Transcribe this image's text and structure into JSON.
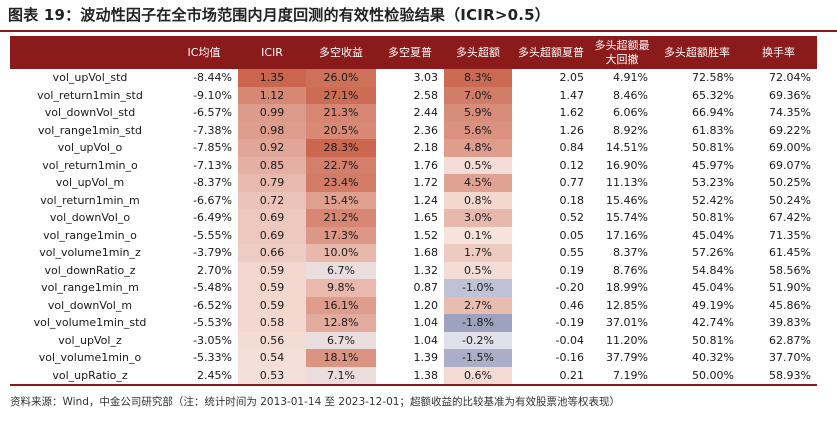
{
  "title": "图表 19：波动性因子在全市场范围内月度回测的有效性检验结果（ICIR>0.5）",
  "footnote": "资料来源：Wind，中金公司研究部（注：统计时间为 2013-01-14 至 2023-12-01；超额收益的比较基准为有效股票池等权表现）",
  "colors": {
    "header_bg": "#8b1a1a",
    "header_text": "#ffffff",
    "heat_positive": "#c0523a",
    "heat_negative": "#7f83a3"
  },
  "columns": [
    "",
    "IC均值",
    "ICIR",
    "多空收益",
    "多空夏普",
    "多头超额",
    "多头超额夏普",
    "多头超额最大回撤",
    "多头超额胜率",
    "换手率"
  ],
  "rows": [
    {
      "name": "vol_upVol_std",
      "ic_mean": "-8.44%",
      "icir": "1.35",
      "ls_return": "26.0%",
      "ls_sharpe": "3.03",
      "long_excess": "8.3%",
      "long_excess_sharpe": "2.05",
      "max_drawdown": "4.91%",
      "win_rate": "72.58%",
      "turnover": "72.04%"
    },
    {
      "name": "vol_return1min_std",
      "ic_mean": "-9.10%",
      "icir": "1.12",
      "ls_return": "27.1%",
      "ls_sharpe": "2.58",
      "long_excess": "7.0%",
      "long_excess_sharpe": "1.47",
      "max_drawdown": "8.46%",
      "win_rate": "65.32%",
      "turnover": "69.36%"
    },
    {
      "name": "vol_downVol_std",
      "ic_mean": "-6.57%",
      "icir": "0.99",
      "ls_return": "21.3%",
      "ls_sharpe": "2.44",
      "long_excess": "5.9%",
      "long_excess_sharpe": "1.62",
      "max_drawdown": "6.06%",
      "win_rate": "66.94%",
      "turnover": "74.35%"
    },
    {
      "name": "vol_range1min_std",
      "ic_mean": "-7.38%",
      "icir": "0.98",
      "ls_return": "20.5%",
      "ls_sharpe": "2.36",
      "long_excess": "5.6%",
      "long_excess_sharpe": "1.26",
      "max_drawdown": "8.92%",
      "win_rate": "61.83%",
      "turnover": "69.22%"
    },
    {
      "name": "vol_upVol_o",
      "ic_mean": "-7.85%",
      "icir": "0.92",
      "ls_return": "28.3%",
      "ls_sharpe": "2.18",
      "long_excess": "4.8%",
      "long_excess_sharpe": "0.84",
      "max_drawdown": "14.51%",
      "win_rate": "50.81%",
      "turnover": "69.00%"
    },
    {
      "name": "vol_return1min_o",
      "ic_mean": "-7.13%",
      "icir": "0.85",
      "ls_return": "22.7%",
      "ls_sharpe": "1.76",
      "long_excess": "0.5%",
      "long_excess_sharpe": "0.12",
      "max_drawdown": "16.90%",
      "win_rate": "45.97%",
      "turnover": "69.07%"
    },
    {
      "name": "vol_upVol_m",
      "ic_mean": "-8.37%",
      "icir": "0.79",
      "ls_return": "23.4%",
      "ls_sharpe": "1.72",
      "long_excess": "4.5%",
      "long_excess_sharpe": "0.77",
      "max_drawdown": "11.13%",
      "win_rate": "53.23%",
      "turnover": "50.25%"
    },
    {
      "name": "vol_return1min_m",
      "ic_mean": "-6.67%",
      "icir": "0.72",
      "ls_return": "15.4%",
      "ls_sharpe": "1.24",
      "long_excess": "0.8%",
      "long_excess_sharpe": "0.18",
      "max_drawdown": "15.46%",
      "win_rate": "52.42%",
      "turnover": "50.24%"
    },
    {
      "name": "vol_downVol_o",
      "ic_mean": "-6.49%",
      "icir": "0.69",
      "ls_return": "21.2%",
      "ls_sharpe": "1.65",
      "long_excess": "3.0%",
      "long_excess_sharpe": "0.52",
      "max_drawdown": "15.74%",
      "win_rate": "50.81%",
      "turnover": "67.42%"
    },
    {
      "name": "vol_range1min_o",
      "ic_mean": "-5.55%",
      "icir": "0.69",
      "ls_return": "17.3%",
      "ls_sharpe": "1.52",
      "long_excess": "0.1%",
      "long_excess_sharpe": "0.05",
      "max_drawdown": "17.16%",
      "win_rate": "45.04%",
      "turnover": "71.35%"
    },
    {
      "name": "vol_volume1min_z",
      "ic_mean": "-3.79%",
      "icir": "0.66",
      "ls_return": "10.0%",
      "ls_sharpe": "1.68",
      "long_excess": "1.7%",
      "long_excess_sharpe": "0.55",
      "max_drawdown": "8.37%",
      "win_rate": "57.26%",
      "turnover": "61.45%"
    },
    {
      "name": "vol_downRatio_z",
      "ic_mean": "2.70%",
      "icir": "0.59",
      "ls_return": "6.7%",
      "ls_sharpe": "1.32",
      "long_excess": "0.5%",
      "long_excess_sharpe": "0.19",
      "max_drawdown": "8.76%",
      "win_rate": "54.84%",
      "turnover": "58.56%"
    },
    {
      "name": "vol_range1min_m",
      "ic_mean": "-5.48%",
      "icir": "0.59",
      "ls_return": "9.8%",
      "ls_sharpe": "0.87",
      "long_excess": "-1.0%",
      "long_excess_sharpe": "-0.20",
      "max_drawdown": "18.99%",
      "win_rate": "45.04%",
      "turnover": "51.90%"
    },
    {
      "name": "vol_downVol_m",
      "ic_mean": "-6.52%",
      "icir": "0.59",
      "ls_return": "16.1%",
      "ls_sharpe": "1.20",
      "long_excess": "2.7%",
      "long_excess_sharpe": "0.46",
      "max_drawdown": "12.85%",
      "win_rate": "49.19%",
      "turnover": "45.86%"
    },
    {
      "name": "vol_volume1min_std",
      "ic_mean": "-5.53%",
      "icir": "0.58",
      "ls_return": "12.8%",
      "ls_sharpe": "1.04",
      "long_excess": "-1.8%",
      "long_excess_sharpe": "-0.19",
      "max_drawdown": "37.01%",
      "win_rate": "42.74%",
      "turnover": "39.83%"
    },
    {
      "name": "vol_upVol_z",
      "ic_mean": "-3.05%",
      "icir": "0.56",
      "ls_return": "6.7%",
      "ls_sharpe": "1.04",
      "long_excess": "-0.2%",
      "long_excess_sharpe": "-0.04",
      "max_drawdown": "11.20%",
      "win_rate": "50.81%",
      "turnover": "62.87%"
    },
    {
      "name": "vol_volume1min_o",
      "ic_mean": "-5.33%",
      "icir": "0.54",
      "ls_return": "18.1%",
      "ls_sharpe": "1.39",
      "long_excess": "-1.5%",
      "long_excess_sharpe": "-0.16",
      "max_drawdown": "37.79%",
      "win_rate": "40.32%",
      "turnover": "37.70%"
    },
    {
      "name": "vol_upRatio_z",
      "ic_mean": "2.45%",
      "icir": "0.53",
      "ls_return": "7.1%",
      "ls_sharpe": "1.38",
      "long_excess": "0.6%",
      "long_excess_sharpe": "0.21",
      "max_drawdown": "7.19%",
      "win_rate": "50.00%",
      "turnover": "58.93%"
    }
  ]
}
